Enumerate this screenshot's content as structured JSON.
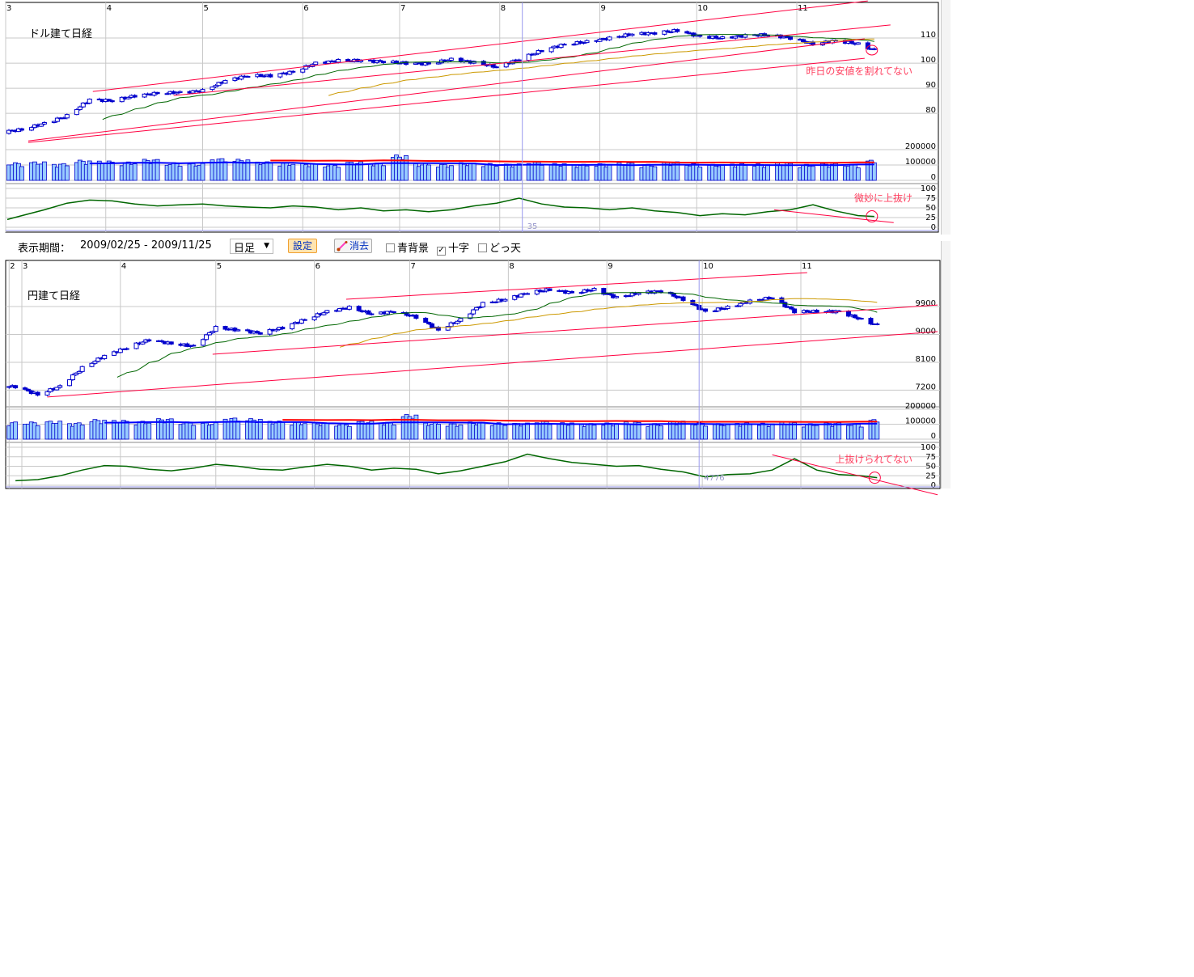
{
  "toolbar": {
    "period_label": "表示期間：",
    "period_value": "2009/02/25 - 2009/11/25",
    "interval_select": "日足",
    "set_button": "設定",
    "clear_button": "消去",
    "checkbox_blue_bg": {
      "label": "青背景",
      "checked": false
    },
    "checkbox_crosshair": {
      "label": "十字",
      "checked": true
    },
    "checkbox_dotten": {
      "label": "どっ天",
      "checked": false
    }
  },
  "colors": {
    "candle": "#0000cc",
    "ma_short": "#006600",
    "ma_long": "#cc9900",
    "trendline": "#ff0040",
    "volume_bar": "#99ccff",
    "volume_ma_short": "#0000ff",
    "volume_ma_long": "#ff0000",
    "oscillator": "#006600",
    "annotation": "#ff4060",
    "grid": "#c8c8c8",
    "crosshair": "#9999ee"
  },
  "chart_data": [
    {
      "type": "candlestick",
      "title": "ドル建て日経",
      "month_ticks": [
        {
          "label": "3",
          "date": "2009-03-01"
        },
        {
          "label": "4",
          "date": "2009-04-01"
        },
        {
          "label": "5",
          "date": "2009-05-01"
        },
        {
          "label": "6",
          "date": "2009-06-01"
        },
        {
          "label": "7",
          "date": "2009-07-01"
        },
        {
          "label": "8",
          "date": "2009-08-01"
        },
        {
          "label": "9",
          "date": "2009-09-01"
        },
        {
          "label": "10",
          "date": "2009-10-01"
        },
        {
          "label": "11",
          "date": "2009-11-01"
        }
      ],
      "price_ticks": [
        "110",
        "100",
        "90",
        "80"
      ],
      "price_tick_values": [
        110,
        100,
        90,
        80
      ],
      "ylim": [
        66.5,
        124.2
      ],
      "volume_ticks": [
        "200000",
        "100000",
        "0"
      ],
      "oscillator_ticks": [
        "100",
        "75",
        "50",
        "25",
        "0"
      ],
      "dates": [
        "2009-02-27",
        "2009-03-06",
        "2009-03-13",
        "2009-03-20",
        "2009-03-27",
        "2009-04-03",
        "2009-04-10",
        "2009-04-17",
        "2009-04-24",
        "2009-05-01",
        "2009-05-08",
        "2009-05-15",
        "2009-05-22",
        "2009-05-29",
        "2009-06-05",
        "2009-06-12",
        "2009-06-19",
        "2009-06-26",
        "2009-07-03",
        "2009-07-10",
        "2009-07-17",
        "2009-07-24",
        "2009-07-31",
        "2009-08-07",
        "2009-08-14",
        "2009-08-21",
        "2009-08-28",
        "2009-09-04",
        "2009-09-11",
        "2009-09-18",
        "2009-09-25",
        "2009-10-02",
        "2009-10-09",
        "2009-10-16",
        "2009-10-23",
        "2009-10-30",
        "2009-11-06",
        "2009-11-13",
        "2009-11-20",
        "2009-11-25"
      ],
      "close": [
        72.5,
        73.5,
        76,
        79,
        85.5,
        85,
        87,
        88,
        88.3,
        89,
        93,
        95,
        95,
        96.5,
        100,
        101,
        101,
        100.6,
        100,
        99.7,
        101.5,
        100.3,
        98.5,
        101.6,
        105,
        107.5,
        108.5,
        110,
        111.6,
        112,
        113,
        110.6,
        110,
        111,
        111.3,
        110,
        107.6,
        109,
        107.6,
        105.2
      ],
      "volume": [
        105000,
        110000,
        100000,
        120000,
        115000,
        110000,
        125000,
        105000,
        100000,
        130000,
        125000,
        110000,
        105000,
        100000,
        95000,
        110000,
        105000,
        150000,
        100000,
        95000,
        105000,
        100000,
        98000,
        110000,
        100000,
        95000,
        100000,
        105000,
        95000,
        110000,
        100000,
        95000,
        100000,
        98000,
        105000,
        95000,
        100000,
        95000,
        120000,
        105000
      ],
      "oscillator": [
        20,
        30,
        45,
        62,
        70,
        68,
        60,
        55,
        58,
        60,
        55,
        52,
        50,
        55,
        52,
        45,
        50,
        42,
        45,
        40,
        45,
        55,
        62,
        75,
        60,
        52,
        50,
        45,
        50,
        42,
        38,
        30,
        35,
        32,
        40,
        45,
        58,
        42,
        30,
        28
      ],
      "trendlines": [
        {
          "from": {
            "date": "2009-03-28",
            "price": 88.7
          },
          "to": {
            "date": "2009-11-23",
            "price": 124.8
          }
        },
        {
          "from": {
            "date": "2009-04-22",
            "price": 87.1
          },
          "to": {
            "date": "2009-11-30",
            "price": 115.2
          }
        },
        {
          "from": {
            "date": "2009-03-08",
            "price": 69.0
          },
          "to": {
            "date": "2009-11-22",
            "price": 109.7
          }
        },
        {
          "from": {
            "date": "2009-03-08",
            "price": 68.4
          },
          "to": {
            "date": "2009-11-22",
            "price": 101.9
          }
        }
      ],
      "oscillator_trendline": {
        "from": {
          "date": "2009-10-25",
          "value": 45
        },
        "to": {
          "date": "2009-12-01",
          "value": 12
        }
      },
      "crosshair": {
        "date": "2009-08-08",
        "label": "35"
      },
      "annotations": [
        {
          "text": "昨日の安値を割れてない",
          "panel": "price"
        },
        {
          "text": "微妙に上抜け",
          "panel": "oscillator"
        }
      ]
    },
    {
      "type": "candlestick",
      "title": "円建て日経",
      "month_ticks": [
        {
          "label": "2",
          "date": "2009-02-25"
        },
        {
          "label": "3",
          "date": "2009-03-01"
        },
        {
          "label": "4",
          "date": "2009-04-01"
        },
        {
          "label": "5",
          "date": "2009-05-01"
        },
        {
          "label": "6",
          "date": "2009-06-01"
        },
        {
          "label": "7",
          "date": "2009-07-01"
        },
        {
          "label": "8",
          "date": "2009-08-01"
        },
        {
          "label": "9",
          "date": "2009-09-01"
        },
        {
          "label": "10",
          "date": "2009-10-01"
        },
        {
          "label": "11",
          "date": "2009-11-01"
        }
      ],
      "price_ticks": [
        "9900",
        "9000",
        "8100",
        "7200"
      ],
      "price_tick_values": [
        9900,
        9000,
        8100,
        7200
      ],
      "ylim": [
        6740,
        11390
      ],
      "volume_ticks": [
        "200000",
        "100000",
        "0"
      ],
      "oscillator_ticks": [
        "100",
        "75",
        "50",
        "25",
        "0"
      ],
      "dates": [
        "2009-02-27",
        "2009-03-06",
        "2009-03-13",
        "2009-03-20",
        "2009-03-27",
        "2009-04-03",
        "2009-04-10",
        "2009-04-17",
        "2009-04-24",
        "2009-05-01",
        "2009-05-08",
        "2009-05-15",
        "2009-05-22",
        "2009-05-29",
        "2009-06-05",
        "2009-06-12",
        "2009-06-19",
        "2009-06-26",
        "2009-07-03",
        "2009-07-10",
        "2009-07-17",
        "2009-07-24",
        "2009-07-31",
        "2009-08-07",
        "2009-08-14",
        "2009-08-21",
        "2009-08-28",
        "2009-09-04",
        "2009-09-11",
        "2009-09-18",
        "2009-09-25",
        "2009-10-02",
        "2009-10-09",
        "2009-10-16",
        "2009-10-23",
        "2009-10-30",
        "2009-11-06",
        "2009-11-13",
        "2009-11-20",
        "2009-11-25"
      ],
      "close": [
        7316,
        7055,
        7320,
        7920,
        8310,
        8570,
        8830,
        8700,
        8620,
        9220,
        9140,
        9040,
        9220,
        9480,
        9740,
        9870,
        9660,
        9740,
        9560,
        9140,
        9480,
        10000,
        10130,
        10340,
        10450,
        10340,
        10450,
        10190,
        10340,
        10400,
        10130,
        9740,
        9870,
        10080,
        10190,
        9740,
        9740,
        9740,
        9480,
        9300
      ],
      "volume": [
        105000,
        110000,
        100000,
        120000,
        115000,
        110000,
        125000,
        105000,
        100000,
        130000,
        125000,
        110000,
        105000,
        100000,
        95000,
        110000,
        105000,
        150000,
        100000,
        95000,
        105000,
        100000,
        98000,
        110000,
        100000,
        95000,
        100000,
        105000,
        95000,
        110000,
        100000,
        95000,
        100000,
        98000,
        105000,
        95000,
        100000,
        95000,
        120000,
        105000
      ],
      "oscillator": [
        12,
        15,
        25,
        40,
        52,
        50,
        42,
        38,
        45,
        55,
        50,
        42,
        40,
        48,
        55,
        50,
        40,
        45,
        42,
        30,
        38,
        50,
        62,
        82,
        70,
        60,
        55,
        50,
        52,
        42,
        35,
        22,
        28,
        30,
        40,
        70,
        40,
        28,
        25,
        20
      ],
      "trendlines": [
        {
          "from": {
            "date": "2009-06-11",
            "price": 10135
          },
          "to": {
            "date": "2009-11-03",
            "price": 10996
          }
        },
        {
          "from": {
            "date": "2009-04-30",
            "price": 8360
          },
          "to": {
            "date": "2009-12-14",
            "price": 9950
          }
        },
        {
          "from": {
            "date": "2009-03-09",
            "price": 6977
          },
          "to": {
            "date": "2009-12-14",
            "price": 9090
          }
        }
      ],
      "oscillator_trendline": {
        "from": {
          "date": "2009-10-23",
          "value": 80
        },
        "to": {
          "date": "2009-12-14",
          "value": -25
        }
      },
      "crosshair": {
        "date": "2009-09-30",
        "label": "4776"
      },
      "annotations": [
        {
          "text": "上抜けられてない",
          "panel": "oscillator"
        }
      ]
    }
  ]
}
